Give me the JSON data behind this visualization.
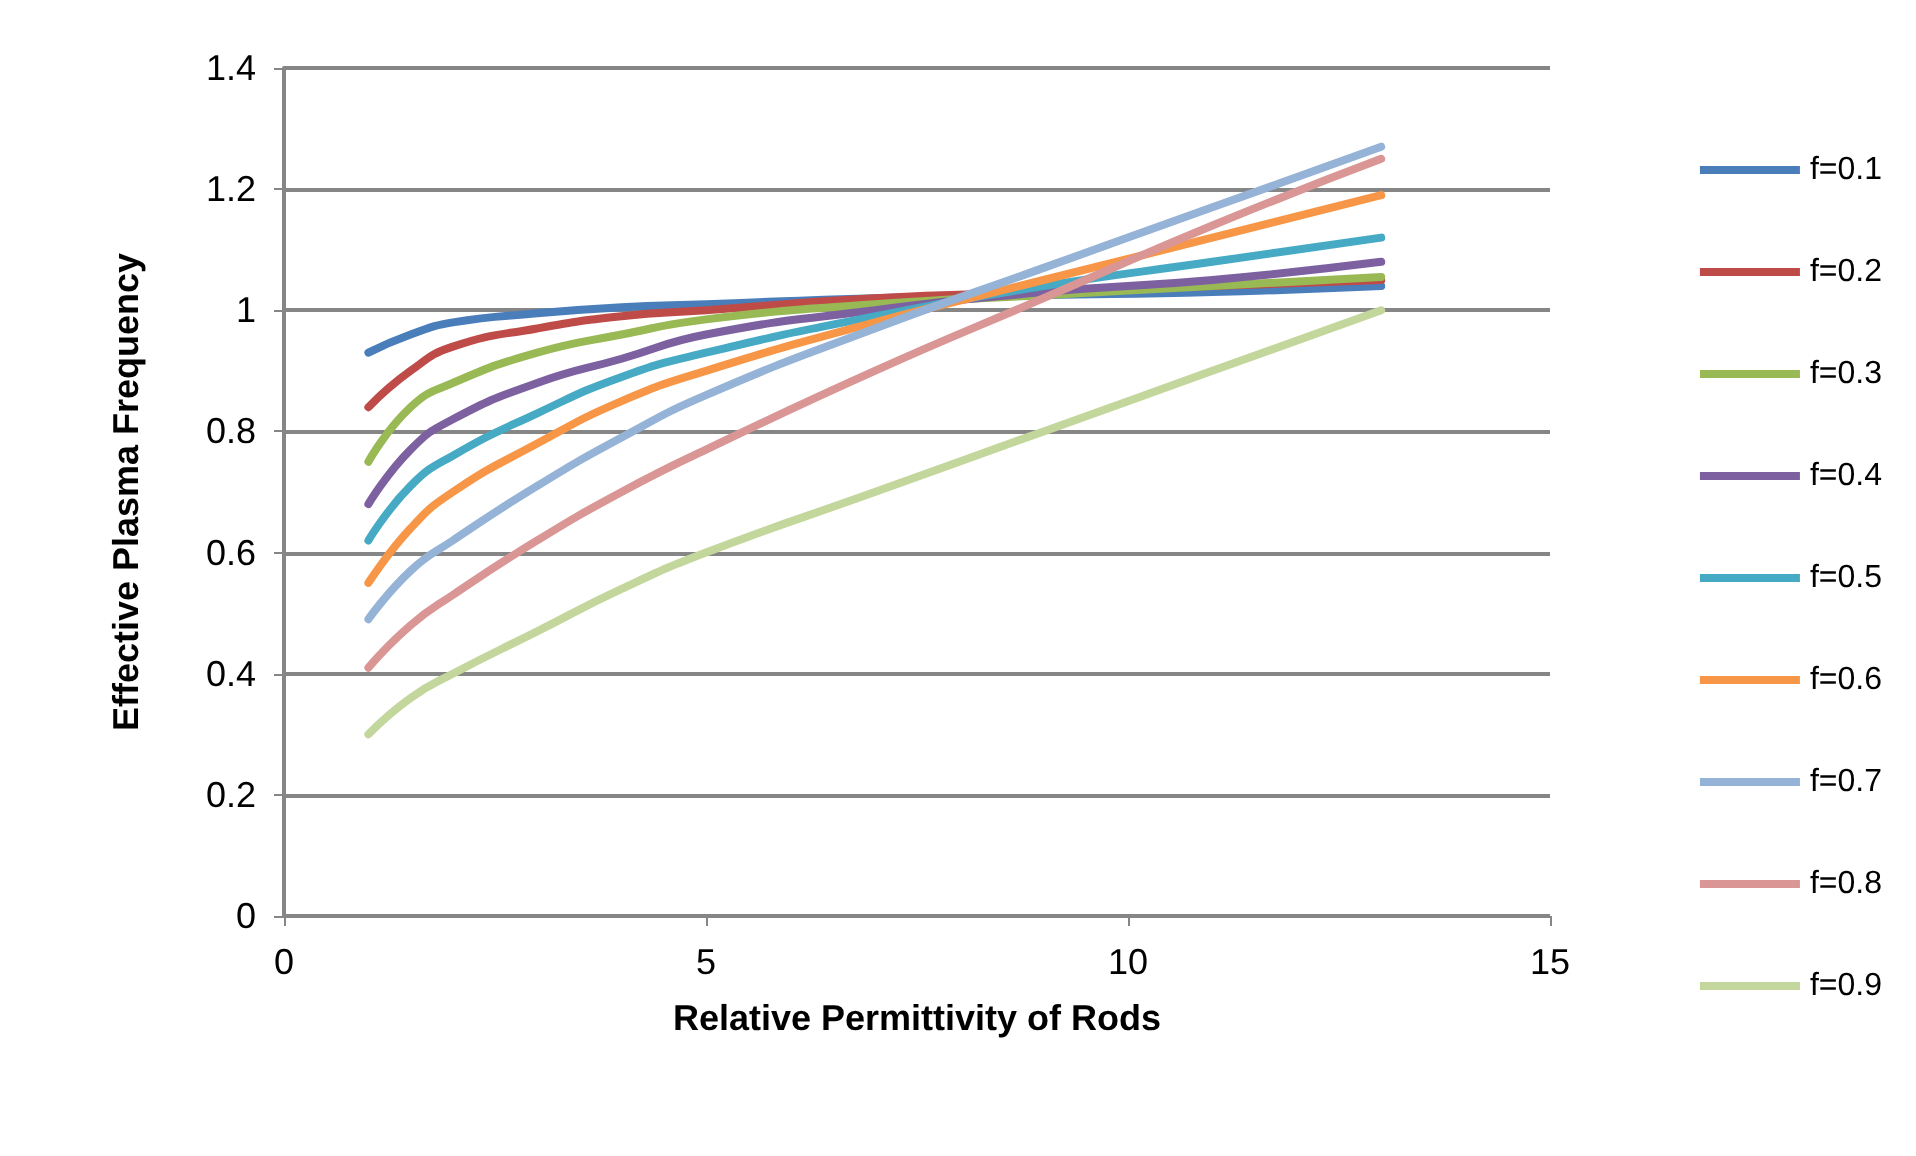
{
  "chart_data": {
    "type": "line",
    "xlabel": "Relative Permittivity of Rods",
    "ylabel": "Effective Plasma Frequency",
    "x": [
      1,
      1.5,
      2,
      3,
      4,
      5,
      7,
      9,
      11,
      13
    ],
    "xlim": [
      0,
      15
    ],
    "xticks": [
      0,
      5,
      10,
      15
    ],
    "ylim": [
      0,
      1.4
    ],
    "yticks": [
      0,
      0.2,
      0.4,
      0.6,
      0.8,
      1,
      1.2,
      1.4
    ],
    "grid": "y",
    "legend": "right",
    "marker": "none",
    "line_style": "solid",
    "series": [
      {
        "name": "f=0.1",
        "color": "#4a7ebb",
        "values": [
          0.93,
          0.96,
          0.98,
          0.995,
          1.005,
          1.01,
          1.02,
          1.025,
          1.03,
          1.04
        ]
      },
      {
        "name": "f=0.2",
        "color": "#be4b48",
        "values": [
          0.84,
          0.9,
          0.94,
          0.97,
          0.99,
          1.0,
          1.02,
          1.03,
          1.04,
          1.05
        ]
      },
      {
        "name": "f=0.3",
        "color": "#98b954",
        "values": [
          0.75,
          0.84,
          0.88,
          0.93,
          0.96,
          0.985,
          1.01,
          1.025,
          1.04,
          1.055
        ]
      },
      {
        "name": "f=0.4",
        "color": "#7d60a0",
        "values": [
          0.68,
          0.77,
          0.82,
          0.88,
          0.92,
          0.96,
          1.0,
          1.03,
          1.05,
          1.08
        ]
      },
      {
        "name": "f=0.5",
        "color": "#46aac5",
        "values": [
          0.62,
          0.71,
          0.76,
          0.83,
          0.89,
          0.93,
          0.99,
          1.04,
          1.08,
          1.12
        ]
      },
      {
        "name": "f=0.6",
        "color": "#f79646",
        "values": [
          0.55,
          0.64,
          0.7,
          0.78,
          0.85,
          0.9,
          0.98,
          1.05,
          1.12,
          1.19
        ]
      },
      {
        "name": "f=0.7",
        "color": "#95b3d7",
        "values": [
          0.49,
          0.57,
          0.62,
          0.71,
          0.79,
          0.86,
          0.97,
          1.07,
          1.17,
          1.27
        ]
      },
      {
        "name": "f=0.8",
        "color": "#d99694",
        "values": [
          0.41,
          0.48,
          0.53,
          0.62,
          0.7,
          0.77,
          0.9,
          1.02,
          1.14,
          1.25
        ]
      },
      {
        "name": "f=0.9",
        "color": "#c3d69b",
        "values": [
          0.3,
          0.36,
          0.4,
          0.47,
          0.54,
          0.6,
          0.7,
          0.8,
          0.9,
          1.0
        ]
      }
    ]
  }
}
